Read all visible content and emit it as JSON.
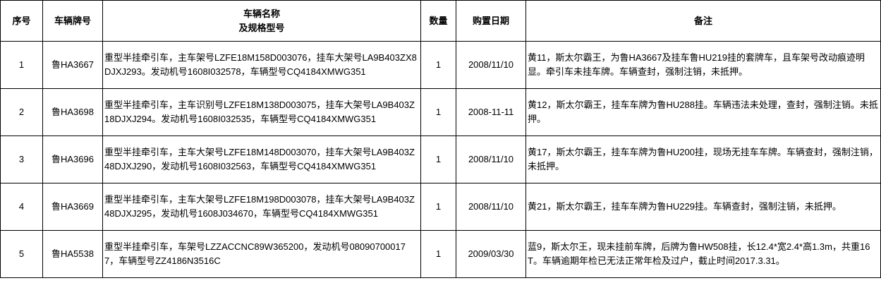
{
  "headers": [
    "序号",
    "车辆牌号",
    "车辆名称\n及规格型号",
    "数量",
    "购置日期",
    "备注"
  ],
  "header_name_line1": "车辆名称",
  "header_name_line2": "及规格型号",
  "rows": [
    {
      "no": "1",
      "plate": "鲁HA3667",
      "desc": "重型半挂牵引车，主车架号LZFE18M158D003076，挂车大架号LA9B403ZX8DJXJ293。发动机号1608I032578，车辆型号CQ4184XMWG351",
      "qty": "1",
      "date": "2008/11/10",
      "note": "黄11，斯太尔霸王，为鲁HA3667及挂车鲁HU219挂的套牌车，且车架号改动痕迹明显。牵引车未挂车牌。车辆查封，强制注销，未抵押。"
    },
    {
      "no": "2",
      "plate": "鲁HA3698",
      "desc": "重型半挂牵引车，主车识别号LZFE18M138D003075，挂车大架号LA9B403Z18DJXJ294。发动机号1608I032535，车辆型号CQ4184XMWG351",
      "qty": "1",
      "date": "2008-11-11",
      "note": "黄12，斯太尔霸王，挂车车牌为鲁HU288挂。车辆违法未处理，查封，强制注销。未抵押。"
    },
    {
      "no": "3",
      "plate": "鲁HA3696",
      "desc": "重型半挂牵引车，主车大架号LZFE18M148D003070，挂车大架号LA9B403Z48DJXJ290，发动机号1608I032563，车辆型号CQ4184XMWG351",
      "qty": "1",
      "date": "2008/11/10",
      "note": "黄17，斯太尔霸王，挂车车牌为鲁HU200挂，现场无挂车车牌。车辆查封，强制注销，未抵押。"
    },
    {
      "no": "4",
      "plate": "鲁HA3669",
      "desc": "重型半挂牵引车，主车大架号LZFE18M198D003078，挂车大架号LA9B403Z48DJXJ295，发动机号1608J034670，车辆型号CQ4184XMWG351",
      "qty": "1",
      "date": "2008/11/10",
      "note": "黄21，斯太尔霸王，挂车车牌为鲁HU229挂。车辆查封，强制注销，未抵押。"
    },
    {
      "no": "5",
      "plate": "鲁HA5538",
      "desc": "重型半挂牵引车，车架号LZZACCNC89W365200，发动机号080907000177，车辆型号ZZ4186N3516C",
      "qty": "1",
      "date": "2009/03/30",
      "note": "蓝9，斯太尔王，现未挂前车牌，后牌为鲁HW508挂，长12.4*宽2.4*高1.3m，共重16T。车辆逾期年检已无法正常年检及过户，截止时间2017.3.31。"
    }
  ]
}
